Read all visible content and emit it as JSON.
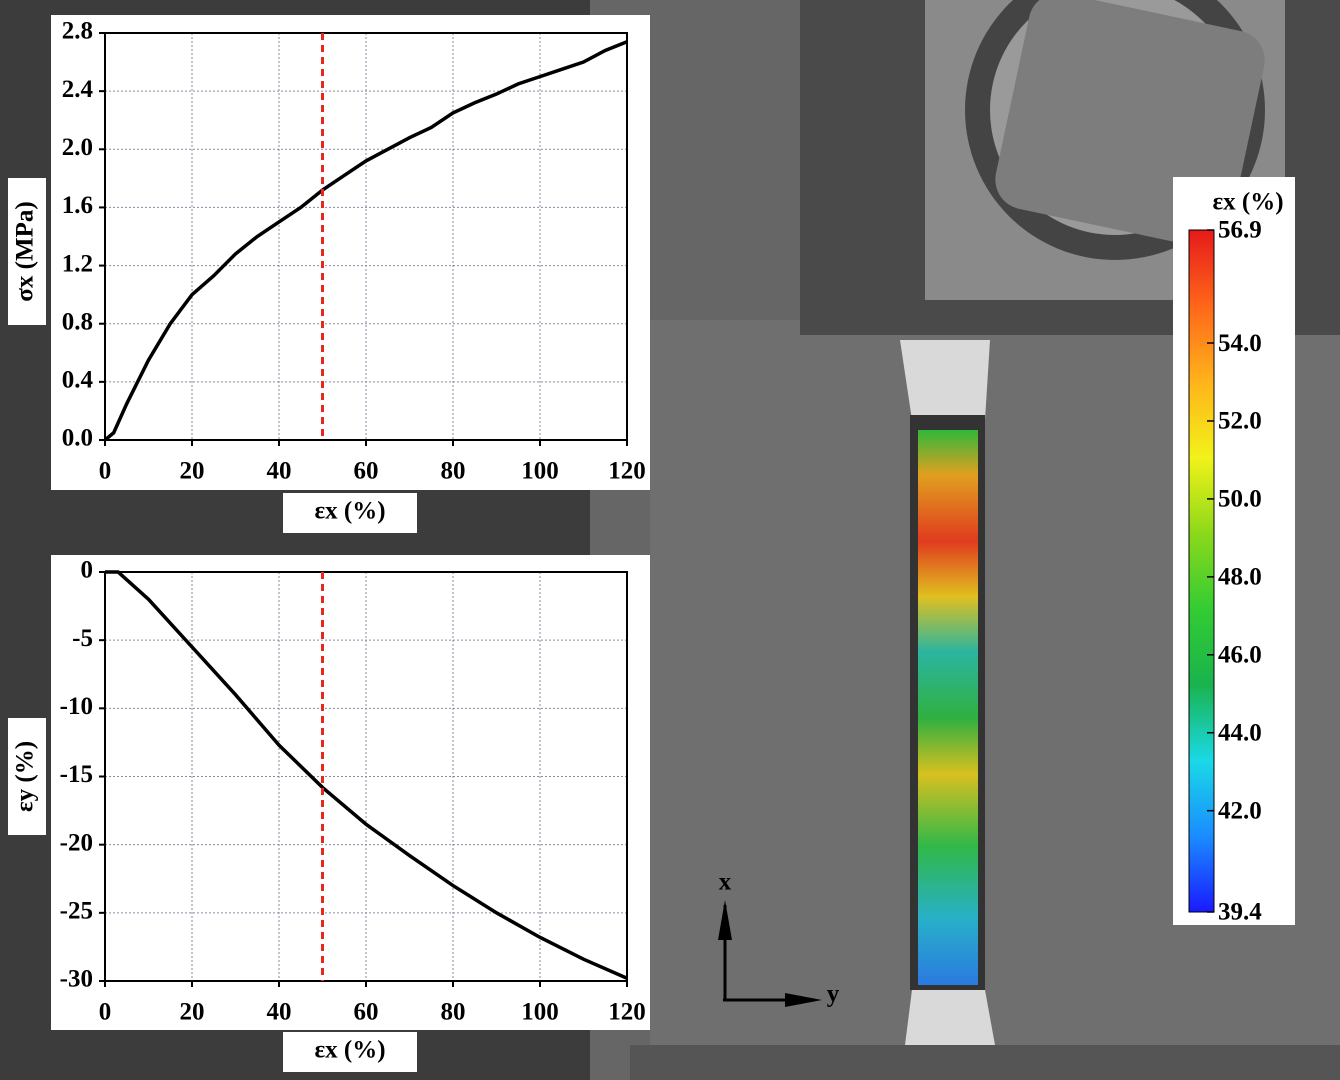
{
  "chart_data": [
    {
      "type": "line",
      "xlabel": "εx (%)",
      "ylabel": "σx (MPa)",
      "x": [
        0,
        2,
        5,
        10,
        15,
        20,
        25,
        30,
        35,
        40,
        45,
        50,
        55,
        60,
        65,
        70,
        75,
        80,
        85,
        90,
        95,
        100,
        105,
        110,
        115,
        120
      ],
      "series": [
        {
          "color": "#000000",
          "values": [
            0,
            0.05,
            0.25,
            0.55,
            0.8,
            1.0,
            1.13,
            1.28,
            1.4,
            1.5,
            1.6,
            1.72,
            1.82,
            1.92,
            2.0,
            2.08,
            2.15,
            2.25,
            2.32,
            2.38,
            2.45,
            2.5,
            2.55,
            2.6,
            2.68,
            2.74
          ]
        }
      ],
      "xlim": [
        0,
        120
      ],
      "xticks": [
        0,
        20,
        40,
        60,
        80,
        100,
        120
      ],
      "ylim": [
        0,
        2.8
      ],
      "yticks": [
        {
          "value": 0,
          "label": "0.0"
        },
        0.4,
        0.8,
        1.2,
        1.6,
        {
          "value": 2,
          "label": "2.0"
        },
        2.4,
        2.8
      ],
      "grid": true,
      "marker": {
        "x": 50,
        "color": "#e8281e"
      }
    },
    {
      "type": "line",
      "xlabel": "εx (%)",
      "ylabel": "εy (%)",
      "x": [
        0,
        3,
        10,
        20,
        30,
        40,
        50,
        60,
        70,
        80,
        90,
        100,
        110,
        120
      ],
      "series": [
        {
          "color": "#000000",
          "values": [
            0,
            0,
            -2,
            -5.5,
            -9,
            -12.7,
            -15.8,
            -18.5,
            -20.8,
            -23,
            -25,
            -26.8,
            -28.4,
            -29.8
          ]
        }
      ],
      "xlim": [
        0,
        120
      ],
      "xticks": [
        0,
        20,
        40,
        60,
        80,
        100,
        120
      ],
      "ylim": [
        -30,
        0
      ],
      "yticks": [
        0,
        -5,
        -10,
        -15,
        -20,
        -25,
        -30
      ],
      "grid": true,
      "marker": {
        "x": 50,
        "color": "#e8281e"
      }
    },
    {
      "type": "colorbar",
      "title": "εx (%)",
      "lim": [
        39.4,
        56.9
      ],
      "ticks": [
        56.9,
        {
          "value": 54,
          "label": "54.0"
        },
        {
          "value": 52,
          "label": "52.0"
        },
        {
          "value": 50,
          "label": "50.0"
        },
        {
          "value": 48,
          "label": "48.0"
        },
        {
          "value": 46,
          "label": "46.0"
        },
        {
          "value": 44,
          "label": "44.0"
        },
        {
          "value": 42,
          "label": "42.0"
        },
        39.4
      ],
      "colors": [
        "#1a1aff",
        "#1a8cff",
        "#1ad9e6",
        "#1ab34d",
        "#33cc33",
        "#8cd91a",
        "#f2f21a",
        "#ffb31a",
        "#ff661a",
        "#e61a1a"
      ]
    }
  ],
  "photo": {
    "axis_x": "x",
    "axis_y": "y"
  }
}
